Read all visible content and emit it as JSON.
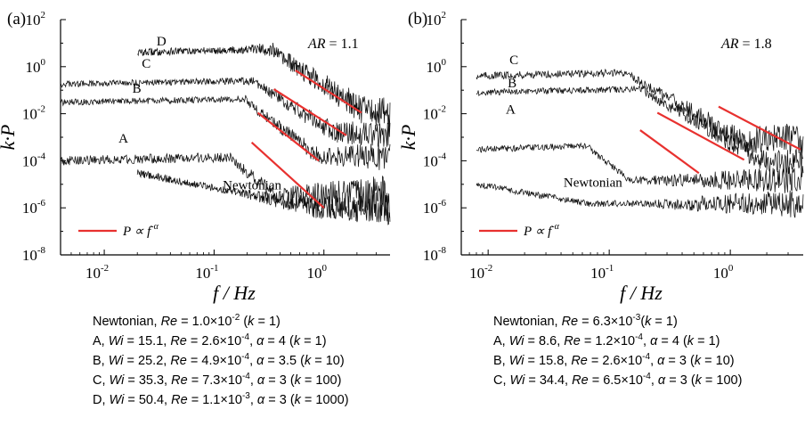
{
  "chart_data": [
    {
      "type": "line",
      "panel_label": "(a)",
      "ylabel": "k·P",
      "xlabel": "f / Hz",
      "xscale": "log",
      "yscale": "log",
      "xlim": [
        0.004,
        4
      ],
      "ylim": [
        1e-08,
        100
      ],
      "x_ticks": [
        "10",
        "10",
        "10"
      ],
      "x_tick_exps": [
        "-2",
        "-1",
        "0"
      ],
      "x_tick_values": [
        0.01,
        0.1,
        1
      ],
      "y_ticks": [
        "10",
        "10",
        "10",
        "10",
        "10",
        "10"
      ],
      "y_tick_exps": [
        "2",
        "0",
        "-2",
        "-4",
        "-6",
        "-8"
      ],
      "y_tick_values": [
        100,
        1,
        0.01,
        0.0001,
        1e-06,
        1e-08
      ],
      "annotation": {
        "lhs": "AR",
        "rhs": "= 1.1"
      },
      "legend": {
        "label": "P ∝ f",
        "exp": "-α",
        "color": "#e8312f",
        "placement": "bottom-left"
      },
      "series": [
        {
          "name": "D",
          "level": 4.0,
          "x_start": 0.02,
          "peak_f": 0.35,
          "alpha": 3,
          "noise_floor": 0.012,
          "amp": 0.35
        },
        {
          "name": "C",
          "level": 0.18,
          "x_start": 0.004,
          "peak_f": 0.25,
          "alpha": 3,
          "noise_floor": 0.0015,
          "amp": 0.3
        },
        {
          "name": "B",
          "level": 0.03,
          "x_start": 0.004,
          "peak_f": 0.2,
          "alpha": 3.5,
          "noise_floor": 0.00015,
          "amp": 0.3
        },
        {
          "name": "A",
          "level": 0.0001,
          "x_start": 0.004,
          "peak_f": 0.15,
          "alpha": 4,
          "noise_floor": 3e-06,
          "amp": 0.45
        },
        {
          "name": "Newtonian",
          "level": 3e-05,
          "x_start": 0.02,
          "peak_f": 0,
          "alpha": 0,
          "noise_floor": 1e-06,
          "amp": 0.35
        }
      ],
      "fit_lines": [
        {
          "x": [
            0.55,
            2.2
          ],
          "y": [
            0.7,
            0.011
          ]
        },
        {
          "x": [
            0.35,
            1.6
          ],
          "y": [
            0.11,
            0.0012
          ]
        },
        {
          "x": [
            0.25,
            0.9
          ],
          "y": [
            0.011,
            0.0001
          ]
        },
        {
          "x": [
            0.22,
            1.0
          ],
          "y": [
            0.0006,
            1e-06
          ]
        }
      ],
      "series_labels": [
        {
          "text": "D",
          "x": 0.03,
          "y": 8.0
        },
        {
          "text": "C",
          "x": 0.022,
          "y": 0.9
        },
        {
          "text": "B",
          "x": 0.018,
          "y": 0.08
        },
        {
          "text": "A",
          "x": 0.0135,
          "y": 0.0006
        },
        {
          "text": "Newtonian",
          "x": 0.12,
          "y": 6e-06
        }
      ],
      "caption": [
        [
          {
            "t": "Newtonian, "
          },
          {
            "t": "Re",
            "i": true
          },
          {
            "t": " = 1.0×10"
          },
          {
            "t": "-2",
            "sup": true
          },
          {
            "t": " ("
          },
          {
            "t": "k",
            "i": true
          },
          {
            "t": " = 1)"
          }
        ],
        [
          {
            "t": "A, "
          },
          {
            "t": "Wi",
            "i": true
          },
          {
            "t": " = 15.1, "
          },
          {
            "t": "Re",
            "i": true
          },
          {
            "t": " = 2.6×10"
          },
          {
            "t": "-4",
            "sup": true
          },
          {
            "t": ", "
          },
          {
            "t": "α",
            "i": true
          },
          {
            "t": " = 4 ("
          },
          {
            "t": "k",
            "i": true
          },
          {
            "t": " = 1)"
          }
        ],
        [
          {
            "t": "B, "
          },
          {
            "t": "Wi",
            "i": true
          },
          {
            "t": " = 25.2, "
          },
          {
            "t": "Re",
            "i": true
          },
          {
            "t": " = 4.9×10"
          },
          {
            "t": "-4",
            "sup": true
          },
          {
            "t": ", "
          },
          {
            "t": "α",
            "i": true
          },
          {
            "t": " = 3.5 ("
          },
          {
            "t": "k",
            "i": true
          },
          {
            "t": " = 10)"
          }
        ],
        [
          {
            "t": "C, "
          },
          {
            "t": "Wi",
            "i": true
          },
          {
            "t": " = 35.3, "
          },
          {
            "t": "Re",
            "i": true
          },
          {
            "t": " = 7.3×10"
          },
          {
            "t": "-4",
            "sup": true
          },
          {
            "t": ", "
          },
          {
            "t": "α",
            "i": true
          },
          {
            "t": " = 3 ("
          },
          {
            "t": "k",
            "i": true
          },
          {
            "t": " = 100)"
          }
        ],
        [
          {
            "t": "D, "
          },
          {
            "t": "Wi",
            "i": true
          },
          {
            "t": " = 50.4, "
          },
          {
            "t": "Re",
            "i": true
          },
          {
            "t": " = 1.1×10"
          },
          {
            "t": "-3",
            "sup": true
          },
          {
            "t": ", "
          },
          {
            "t": "α",
            "i": true
          },
          {
            "t": " = 3 ("
          },
          {
            "t": "k",
            "i": true
          },
          {
            "t": " = 1000)"
          }
        ]
      ]
    },
    {
      "type": "line",
      "panel_label": "(b)",
      "ylabel": "k·P",
      "xlabel": "f / Hz",
      "xscale": "log",
      "yscale": "log",
      "xlim": [
        0.006,
        4
      ],
      "ylim": [
        1e-08,
        100
      ],
      "x_ticks": [
        "10",
        "10",
        "10"
      ],
      "x_tick_exps": [
        "-2",
        "-1",
        "0"
      ],
      "x_tick_values": [
        0.01,
        0.1,
        1
      ],
      "y_ticks": [
        "10",
        "10",
        "10",
        "10",
        "10",
        "10"
      ],
      "y_tick_exps": [
        "2",
        "0",
        "-2",
        "-4",
        "-6",
        "-8"
      ],
      "y_tick_values": [
        100,
        1,
        0.01,
        0.0001,
        1e-06,
        1e-08
      ],
      "annotation": {
        "lhs": "AR",
        "rhs": "= 1.8"
      },
      "legend": {
        "label": "P ∝ f",
        "exp": "-α",
        "color": "#e8312f",
        "placement": "bottom-left"
      },
      "series": [
        {
          "name": "C",
          "level": 0.4,
          "x_start": 0.008,
          "peak_f": 0.15,
          "alpha": 3,
          "noise_floor": 0.0008,
          "amp": 0.35
        },
        {
          "name": "B",
          "level": 0.08,
          "x_start": 0.008,
          "peak_f": 0.2,
          "alpha": 3,
          "noise_floor": 8e-05,
          "amp": 0.3
        },
        {
          "name": "A",
          "level": 0.0003,
          "x_start": 0.008,
          "peak_f": 0.07,
          "alpha": 4,
          "noise_floor": 1.5e-05,
          "amp": 0.3
        },
        {
          "name": "Newtonian",
          "level": 1e-05,
          "x_start": 0.008,
          "peak_f": 0,
          "alpha": 0,
          "noise_floor": 1.5e-06,
          "amp": 0.3
        }
      ],
      "fit_lines": [
        {
          "x": [
            0.8,
            3.8
          ],
          "y": [
            0.02,
            0.0003
          ]
        },
        {
          "x": [
            0.25,
            1.3
          ],
          "y": [
            0.011,
            0.00011
          ]
        },
        {
          "x": [
            0.18,
            0.55
          ],
          "y": [
            0.002,
            3e-05
          ]
        }
      ],
      "series_labels": [
        {
          "text": "C",
          "x": 0.015,
          "y": 1.3
        },
        {
          "text": "B",
          "x": 0.0145,
          "y": 0.13
        },
        {
          "text": "A",
          "x": 0.014,
          "y": 0.01
        },
        {
          "text": "Newtonian",
          "x": 0.042,
          "y": 8e-06
        }
      ],
      "caption": [
        [
          {
            "t": "Newtonian, "
          },
          {
            "t": "Re",
            "i": true
          },
          {
            "t": " = 6.3×10"
          },
          {
            "t": "-3",
            "sup": true
          },
          {
            "t": "("
          },
          {
            "t": "k",
            "i": true
          },
          {
            "t": " = 1)"
          }
        ],
        [
          {
            "t": "A, "
          },
          {
            "t": "Wi",
            "i": true
          },
          {
            "t": " = 8.6, "
          },
          {
            "t": "Re",
            "i": true
          },
          {
            "t": " = 1.2×10"
          },
          {
            "t": "-4",
            "sup": true
          },
          {
            "t": ", "
          },
          {
            "t": "α",
            "i": true
          },
          {
            "t": " = 4 ("
          },
          {
            "t": "k",
            "i": true
          },
          {
            "t": " = 1)"
          }
        ],
        [
          {
            "t": "B, "
          },
          {
            "t": "Wi",
            "i": true
          },
          {
            "t": " = 15.8, "
          },
          {
            "t": "Re",
            "i": true
          },
          {
            "t": " = 2.6×10"
          },
          {
            "t": "-4",
            "sup": true
          },
          {
            "t": ", "
          },
          {
            "t": "α",
            "i": true
          },
          {
            "t": " = 3 ("
          },
          {
            "t": "k",
            "i": true
          },
          {
            "t": " = 10)"
          }
        ],
        [
          {
            "t": "C, "
          },
          {
            "t": "Wi",
            "i": true
          },
          {
            "t": " = 34.4, "
          },
          {
            "t": "Re",
            "i": true
          },
          {
            "t": " = 6.5×10"
          },
          {
            "t": "-4",
            "sup": true
          },
          {
            "t": ", "
          },
          {
            "t": "α",
            "i": true
          },
          {
            "t": " = 3 ("
          },
          {
            "t": "k",
            "i": true
          },
          {
            "t": " = 100)"
          }
        ]
      ]
    }
  ]
}
